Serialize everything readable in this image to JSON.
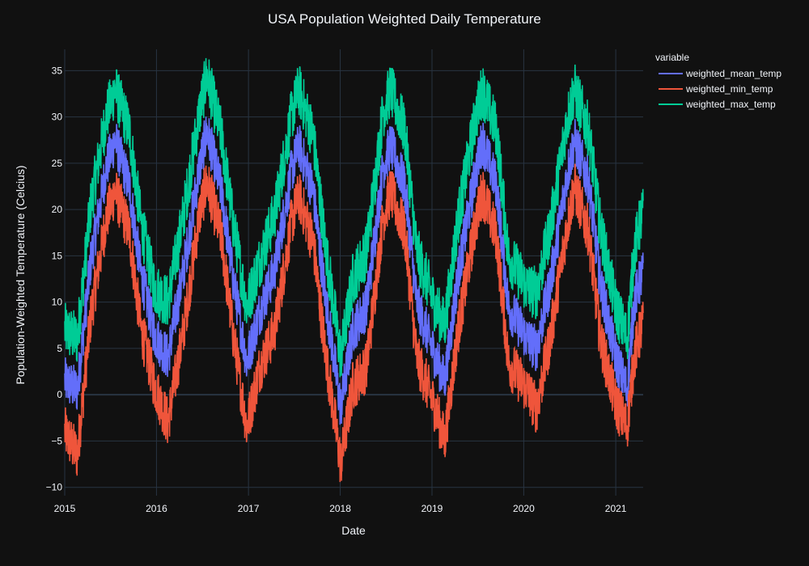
{
  "chart_data": {
    "type": "line",
    "title": "USA Population Weighted Daily Temperature",
    "xlabel": "Date",
    "ylabel": "Population-Weighted Temperature (Celcius)",
    "xlim": [
      "2015-01-01",
      "2021-04-20"
    ],
    "ylim": [
      -10.9,
      37.3
    ],
    "x_ticks": [
      "2015",
      "2016",
      "2017",
      "2018",
      "2019",
      "2020",
      "2021"
    ],
    "y_ticks": [
      -10,
      -5,
      0,
      5,
      10,
      15,
      20,
      25,
      30,
      35
    ],
    "grid": true,
    "background": "#111111",
    "grid_color": "#283442",
    "legend": {
      "title": "variable",
      "position": "top-right"
    },
    "series": [
      {
        "name": "weighted_mean_temp",
        "color": "#636efa",
        "x": [
          "2015-01-01",
          "2015-02-20",
          "2015-04-15",
          "2015-06-15",
          "2015-07-20",
          "2015-09-15",
          "2015-11-01",
          "2015-12-25",
          "2016-02-15",
          "2016-04-15",
          "2016-06-20",
          "2016-07-20",
          "2016-09-15",
          "2016-11-01",
          "2016-12-25",
          "2017-02-15",
          "2017-04-15",
          "2017-06-20",
          "2017-07-20",
          "2017-09-15",
          "2017-11-01",
          "2018-01-03",
          "2018-02-20",
          "2018-04-15",
          "2018-06-20",
          "2018-07-20",
          "2018-09-15",
          "2018-11-01",
          "2019-01-15",
          "2019-02-20",
          "2019-04-15",
          "2019-06-20",
          "2019-07-20",
          "2019-09-15",
          "2019-11-01",
          "2020-01-15",
          "2020-02-20",
          "2020-04-15",
          "2020-06-20",
          "2020-07-20",
          "2020-09-15",
          "2020-11-01",
          "2021-01-01",
          "2021-02-15",
          "2021-03-15",
          "2021-04-15"
        ],
        "y": [
          1.5,
          0.5,
          14.5,
          24.5,
          27.5,
          22.5,
          13.0,
          6.5,
          4.0,
          13.0,
          24.5,
          28.5,
          22.0,
          12.5,
          3.5,
          9.0,
          13.5,
          24.0,
          27.0,
          22.0,
          11.0,
          -1.5,
          7.0,
          9.5,
          24.5,
          27.0,
          22.5,
          10.0,
          4.0,
          1.5,
          13.0,
          23.5,
          27.5,
          22.5,
          9.5,
          6.0,
          5.0,
          12.0,
          23.5,
          27.5,
          23.0,
          12.0,
          4.0,
          0.5,
          10.0,
          13.0
        ]
      },
      {
        "name": "weighted_min_temp",
        "color": "#ef553b",
        "x": [
          "2015-01-01",
          "2015-02-20",
          "2015-04-15",
          "2015-06-15",
          "2015-07-20",
          "2015-09-15",
          "2015-11-01",
          "2015-12-25",
          "2016-02-15",
          "2016-04-15",
          "2016-06-20",
          "2016-07-20",
          "2016-09-15",
          "2016-11-01",
          "2016-12-25",
          "2017-02-15",
          "2017-04-15",
          "2017-06-20",
          "2017-07-20",
          "2017-09-15",
          "2017-11-01",
          "2018-01-03",
          "2018-02-20",
          "2018-04-15",
          "2018-06-20",
          "2018-07-20",
          "2018-09-15",
          "2018-11-01",
          "2019-01-15",
          "2019-02-20",
          "2019-04-15",
          "2019-06-20",
          "2019-07-20",
          "2019-09-15",
          "2019-11-01",
          "2020-01-15",
          "2020-02-20",
          "2020-04-15",
          "2020-06-20",
          "2020-07-20",
          "2020-09-15",
          "2020-11-01",
          "2021-01-01",
          "2021-02-15",
          "2021-03-15",
          "2021-04-15"
        ],
        "y": [
          -4.0,
          -6.5,
          8.5,
          19.0,
          22.0,
          17.5,
          7.0,
          1.0,
          -3.0,
          6.5,
          19.5,
          23.0,
          17.0,
          6.5,
          -3.5,
          3.0,
          7.0,
          18.5,
          21.5,
          16.5,
          5.0,
          -7.5,
          1.0,
          3.0,
          19.0,
          22.0,
          17.5,
          4.0,
          -1.5,
          -5.0,
          7.0,
          18.0,
          22.0,
          17.0,
          3.5,
          0.5,
          -1.5,
          6.0,
          18.0,
          22.5,
          17.5,
          6.0,
          -1.0,
          -3.5,
          4.0,
          7.5
        ]
      },
      {
        "name": "weighted_max_temp",
        "color": "#00cc96",
        "x": [
          "2015-01-01",
          "2015-02-20",
          "2015-04-15",
          "2015-06-15",
          "2015-07-20",
          "2015-09-15",
          "2015-11-01",
          "2015-12-25",
          "2016-02-15",
          "2016-04-15",
          "2016-06-20",
          "2016-07-20",
          "2016-09-15",
          "2016-11-01",
          "2016-12-25",
          "2017-02-15",
          "2017-04-15",
          "2017-06-20",
          "2017-07-20",
          "2017-09-15",
          "2017-11-01",
          "2018-01-03",
          "2018-02-20",
          "2018-04-15",
          "2018-06-20",
          "2018-07-20",
          "2018-09-15",
          "2018-11-01",
          "2019-01-15",
          "2019-02-20",
          "2019-04-15",
          "2019-06-20",
          "2019-07-20",
          "2019-09-15",
          "2019-11-01",
          "2020-01-15",
          "2020-02-20",
          "2020-04-15",
          "2020-06-20",
          "2020-07-20",
          "2020-09-15",
          "2020-11-01",
          "2021-01-01",
          "2021-02-15",
          "2021-03-15",
          "2021-04-15"
        ],
        "y": [
          7.0,
          6.0,
          20.5,
          30.0,
          33.0,
          28.5,
          18.5,
          11.5,
          10.0,
          19.0,
          30.5,
          34.5,
          28.0,
          18.5,
          9.5,
          14.5,
          19.5,
          30.0,
          33.0,
          28.0,
          16.5,
          4.0,
          12.5,
          15.5,
          30.5,
          33.0,
          28.5,
          15.5,
          9.5,
          7.5,
          19.0,
          29.5,
          33.0,
          28.5,
          15.0,
          11.5,
          11.0,
          18.0,
          29.5,
          33.0,
          28.5,
          18.0,
          9.5,
          6.0,
          15.5,
          19.5
        ]
      }
    ]
  }
}
